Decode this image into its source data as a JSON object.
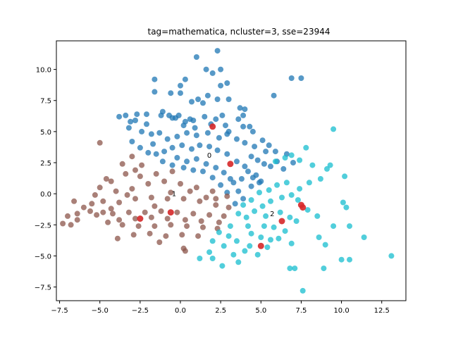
{
  "chart_data": {
    "type": "scatter",
    "title": "tag=mathematica, ncluster=3, sse=23944",
    "xlabel": "",
    "ylabel": "",
    "xlim": [
      -7.7,
      14.0
    ],
    "ylim": [
      -8.6,
      12.3
    ],
    "xticks": [
      -7.5,
      -5.0,
      -2.5,
      0.0,
      2.5,
      5.0,
      7.5,
      10.0,
      12.5
    ],
    "xtick_labels": [
      "−7.5",
      "−5.0",
      "−2.5",
      "0.0",
      "2.5",
      "5.0",
      "7.5",
      "10.0",
      "12.5"
    ],
    "yticks": [
      -7.5,
      -5.0,
      -2.5,
      0.0,
      2.5,
      5.0,
      7.5,
      10.0
    ],
    "ytick_labels": [
      "−7.5",
      "−5.0",
      "−2.5",
      "0.0",
      "2.5",
      "5.0",
      "7.5",
      "10.0"
    ],
    "grid": false,
    "colors": {
      "cluster_0": "#1f77b4",
      "cluster_1": "#8c564b",
      "cluster_2": "#17becf",
      "centroid": "#d62728"
    },
    "cluster_labels": [
      {
        "text": "0",
        "x": 1.8,
        "y": 2.9
      },
      {
        "text": "1",
        "x": -0.4,
        "y": -0.2
      },
      {
        "text": "2",
        "x": 5.7,
        "y": -1.8
      }
    ],
    "centroids": [
      {
        "x": 2.0,
        "y": 5.4
      },
      {
        "x": 3.1,
        "y": 2.4
      },
      {
        "x": -2.5,
        "y": -2.0
      },
      {
        "x": -0.6,
        "y": -1.5
      },
      {
        "x": 5.0,
        "y": -4.2
      },
      {
        "x": 6.3,
        "y": -2.2
      },
      {
        "x": 7.5,
        "y": -0.9
      },
      {
        "x": 7.6,
        "y": -1.1
      }
    ],
    "series": [
      {
        "color_key": "cluster_0",
        "points": [
          [
            -1.6,
            8.2
          ],
          [
            -1.2,
            6.3
          ],
          [
            -0.7,
            6.3
          ],
          [
            -0.5,
            6.1
          ],
          [
            -0.3,
            6.1
          ],
          [
            0.2,
            5.5
          ],
          [
            0.3,
            5.8
          ],
          [
            0.6,
            6.0
          ],
          [
            0.9,
            5.3
          ],
          [
            1.5,
            6.2
          ],
          [
            2.2,
            6.0
          ],
          [
            2.6,
            6.3
          ],
          [
            3.0,
            5.0
          ],
          [
            3.6,
            6.0
          ],
          [
            3.9,
            6.3
          ],
          [
            4.3,
            5.4
          ],
          [
            -3.2,
            5.3
          ],
          [
            -3.4,
            6.3
          ],
          [
            -2.8,
            5.9
          ],
          [
            -2.7,
            6.4
          ],
          [
            -2.4,
            5.0
          ],
          [
            -2.1,
            5.6
          ],
          [
            -1.8,
            4.8
          ],
          [
            -1.3,
            4.9
          ],
          [
            -3.0,
            4.2
          ],
          [
            -2.5,
            3.7
          ],
          [
            -1.7,
            4.0
          ],
          [
            -0.8,
            4.4
          ],
          [
            -0.2,
            4.6
          ],
          [
            0.4,
            4.9
          ],
          [
            1.0,
            4.7
          ],
          [
            1.7,
            4.9
          ],
          [
            2.4,
            4.5
          ],
          [
            2.9,
            4.8
          ],
          [
            3.5,
            4.4
          ],
          [
            4.0,
            4.1
          ],
          [
            4.6,
            3.8
          ],
          [
            5.1,
            4.3
          ],
          [
            5.5,
            3.9
          ],
          [
            5.9,
            3.4
          ],
          [
            4.4,
            3.0
          ],
          [
            4.8,
            2.7
          ],
          [
            5.2,
            2.4
          ],
          [
            5.6,
            2.2
          ],
          [
            4.2,
            1.8
          ],
          [
            4.7,
            1.5
          ],
          [
            3.8,
            1.2
          ],
          [
            3.3,
            0.9
          ],
          [
            4.0,
            2.2
          ],
          [
            3.5,
            2.6
          ],
          [
            2.9,
            3.2
          ],
          [
            2.3,
            3.5
          ],
          [
            1.8,
            3.8
          ],
          [
            1.2,
            3.9
          ],
          [
            0.7,
            3.6
          ],
          [
            0.1,
            3.9
          ],
          [
            -0.5,
            3.7
          ],
          [
            -1.0,
            3.4
          ],
          [
            -1.5,
            3.2
          ],
          [
            -2.0,
            3.3
          ],
          [
            -0.2,
            2.9
          ],
          [
            0.4,
            2.6
          ],
          [
            1.0,
            2.8
          ],
          [
            1.6,
            2.4
          ],
          [
            2.2,
            2.1
          ],
          [
            2.7,
            1.7
          ],
          [
            3.1,
            1.2
          ],
          [
            2.5,
            0.7
          ],
          [
            2.0,
            1.3
          ],
          [
            1.4,
            1.8
          ],
          [
            0.8,
            1.9
          ],
          [
            0.2,
            2.1
          ],
          [
            -0.5,
            2.3
          ],
          [
            -1.1,
            2.6
          ],
          [
            3.6,
            0.2
          ],
          [
            3.9,
            -0.4
          ],
          [
            3.4,
            -0.8
          ],
          [
            2.9,
            0.1
          ],
          [
            4.4,
            0.6
          ],
          [
            4.9,
            0.9
          ],
          [
            1.0,
            11.0
          ],
          [
            2.3,
            11.5
          ],
          [
            1.6,
            10.0
          ],
          [
            2.0,
            9.7
          ],
          [
            2.5,
            10.0
          ],
          [
            0.3,
            9.2
          ],
          [
            -1.6,
            9.2
          ],
          [
            0.0,
            8.7
          ],
          [
            2.5,
            8.7
          ],
          [
            2.9,
            8.9
          ],
          [
            -0.6,
            8.1
          ],
          [
            0.0,
            8.1
          ],
          [
            1.7,
            7.9
          ],
          [
            1.1,
            7.6
          ],
          [
            3.0,
            7.6
          ],
          [
            0.7,
            7.4
          ],
          [
            2.3,
            7.6
          ],
          [
            1.4,
            7.3
          ],
          [
            3.7,
            6.9
          ],
          [
            4.0,
            6.8
          ],
          [
            -3.8,
            6.2
          ],
          [
            -3.1,
            5.8
          ],
          [
            -2.1,
            6.4
          ],
          [
            -1.1,
            6.6
          ],
          [
            -0.1,
            6.3
          ],
          [
            0.8,
            5.9
          ],
          [
            1.9,
            5.6
          ],
          [
            2.8,
            5.5
          ],
          [
            3.9,
            5.4
          ],
          [
            4.5,
            5.0
          ],
          [
            5.8,
            7.9
          ],
          [
            6.9,
            9.3
          ],
          [
            7.5,
            9.3
          ],
          [
            7.0,
            2.5
          ],
          [
            6.6,
            3.2
          ],
          [
            5.3,
            3.4
          ],
          [
            6.0,
            2.6
          ],
          [
            6.4,
            2.0
          ],
          [
            5.0,
            1.0
          ],
          [
            4.5,
            1.3
          ]
        ]
      },
      {
        "color_key": "cluster_1",
        "points": [
          [
            -5.0,
            4.1
          ],
          [
            -3.0,
            3.0
          ],
          [
            -2.4,
            2.3
          ],
          [
            -3.4,
            1.6
          ],
          [
            -4.3,
            1.0
          ],
          [
            -5.0,
            0.5
          ],
          [
            -4.0,
            0.2
          ],
          [
            -3.0,
            0.4
          ],
          [
            -2.0,
            0.8
          ],
          [
            -1.0,
            1.0
          ],
          [
            0.0,
            0.8
          ],
          [
            1.0,
            0.5
          ],
          [
            2.0,
            0.2
          ],
          [
            2.9,
            -0.2
          ],
          [
            -5.3,
            -0.1
          ],
          [
            -4.8,
            -0.6
          ],
          [
            -3.8,
            -0.7
          ],
          [
            -2.8,
            -0.4
          ],
          [
            -1.8,
            -0.3
          ],
          [
            -0.8,
            -0.4
          ],
          [
            0.2,
            -0.4
          ],
          [
            1.2,
            -0.6
          ],
          [
            2.2,
            -0.9
          ],
          [
            3.0,
            -1.1
          ],
          [
            -6.6,
            -0.6
          ],
          [
            -6.0,
            -1.1
          ],
          [
            -5.6,
            -1.4
          ],
          [
            -6.4,
            -1.6
          ],
          [
            -7.0,
            -1.8
          ],
          [
            -7.3,
            -2.4
          ],
          [
            -6.8,
            -2.5
          ],
          [
            -6.4,
            -2.1
          ],
          [
            -5.2,
            -1.7
          ],
          [
            -4.2,
            -1.6
          ],
          [
            -3.2,
            -1.5
          ],
          [
            -2.2,
            -1.5
          ],
          [
            -1.2,
            -1.4
          ],
          [
            -0.2,
            -1.5
          ],
          [
            0.8,
            -1.6
          ],
          [
            1.8,
            -1.7
          ],
          [
            2.7,
            -1.8
          ],
          [
            -4.5,
            -2.3
          ],
          [
            -3.6,
            -2.5
          ],
          [
            -2.6,
            -2.6
          ],
          [
            -1.6,
            -2.6
          ],
          [
            -0.6,
            -2.5
          ],
          [
            0.4,
            -2.6
          ],
          [
            1.4,
            -2.7
          ],
          [
            2.3,
            -2.8
          ],
          [
            -3.9,
            -3.6
          ],
          [
            -2.9,
            -3.3
          ],
          [
            -1.9,
            -3.2
          ],
          [
            -0.9,
            -3.4
          ],
          [
            0.1,
            -3.3
          ],
          [
            1.1,
            -3.4
          ],
          [
            -1.3,
            -3.9
          ],
          [
            0.2,
            -4.4
          ],
          [
            0.3,
            -4.6
          ],
          [
            -1.6,
            -1.0
          ],
          [
            -0.6,
            0.1
          ],
          [
            0.6,
            0.2
          ],
          [
            1.6,
            -0.3
          ],
          [
            -2.5,
            1.4
          ],
          [
            -1.5,
            1.6
          ],
          [
            -0.5,
            1.8
          ],
          [
            -4.6,
            1.2
          ],
          [
            -3.6,
            2.4
          ],
          [
            -2.8,
            1.9
          ],
          [
            -3.3,
            -0.1
          ],
          [
            -4.3,
            -1.2
          ],
          [
            -5.5,
            -0.8
          ],
          [
            -4.8,
            -1.5
          ],
          [
            -3.8,
            -2.1
          ],
          [
            -2.8,
            -2.0
          ],
          [
            -1.8,
            -1.9
          ],
          [
            -0.8,
            -2.0
          ],
          [
            0.3,
            -2.1
          ],
          [
            1.3,
            -2.2
          ],
          [
            2.4,
            -2.3
          ],
          [
            2.2,
            -0.4
          ]
        ]
      },
      {
        "color_key": "cluster_2",
        "points": [
          [
            9.5,
            5.2
          ],
          [
            7.8,
            3.7
          ],
          [
            6.9,
            3.1
          ],
          [
            6.5,
            2.9
          ],
          [
            5.9,
            2.6
          ],
          [
            7.4,
            2.7
          ],
          [
            8.2,
            2.3
          ],
          [
            9.1,
            2.0
          ],
          [
            9.3,
            2.3
          ],
          [
            10.2,
            1.4
          ],
          [
            8.7,
            1.2
          ],
          [
            8.0,
            0.9
          ],
          [
            7.4,
            0.4
          ],
          [
            6.6,
            0.9
          ],
          [
            6.0,
            0.7
          ],
          [
            5.5,
            0.3
          ],
          [
            4.9,
            0.1
          ],
          [
            4.4,
            -0.5
          ],
          [
            3.9,
            -0.9
          ],
          [
            3.6,
            -1.6
          ],
          [
            4.1,
            -1.9
          ],
          [
            4.6,
            -1.4
          ],
          [
            5.1,
            -1.0
          ],
          [
            5.6,
            -0.6
          ],
          [
            6.3,
            -0.3
          ],
          [
            6.9,
            -0.1
          ],
          [
            7.3,
            -0.5
          ],
          [
            7.9,
            -1.3
          ],
          [
            8.5,
            -1.8
          ],
          [
            9.5,
            -2.6
          ],
          [
            10.1,
            -0.7
          ],
          [
            10.3,
            -1.1
          ],
          [
            10.5,
            -2.6
          ],
          [
            11.4,
            -3.5
          ],
          [
            13.1,
            -5.0
          ],
          [
            9.0,
            -4.1
          ],
          [
            8.6,
            -3.5
          ],
          [
            8.9,
            -6.0
          ],
          [
            7.6,
            -7.8
          ],
          [
            7.1,
            -6.0
          ],
          [
            6.8,
            -6.0
          ],
          [
            10.0,
            -5.3
          ],
          [
            10.5,
            -5.3
          ],
          [
            6.9,
            -4.0
          ],
          [
            6.1,
            -3.6
          ],
          [
            5.6,
            -3.7
          ],
          [
            4.8,
            -4.9
          ],
          [
            4.0,
            -4.6
          ],
          [
            3.6,
            -5.5
          ],
          [
            2.6,
            -5.8
          ],
          [
            2.0,
            -5.2
          ],
          [
            1.8,
            -4.7
          ],
          [
            1.2,
            -5.2
          ],
          [
            2.7,
            -4.2
          ],
          [
            3.5,
            -3.8
          ],
          [
            4.4,
            -3.2
          ],
          [
            5.2,
            -2.6
          ],
          [
            5.8,
            -2.7
          ],
          [
            6.5,
            -3.0
          ],
          [
            7.2,
            -2.2
          ],
          [
            2.4,
            -3.1
          ],
          [
            3.1,
            -2.6
          ],
          [
            2.0,
            -3.8
          ],
          [
            3.0,
            -3.4
          ],
          [
            4.2,
            -2.6
          ],
          [
            5.0,
            -3.5
          ],
          [
            5.4,
            -4.3
          ],
          [
            3.3,
            -4.9
          ],
          [
            4.3,
            -4.2
          ],
          [
            6.2,
            -1.5
          ],
          [
            6.8,
            -1.9
          ],
          [
            5.3,
            -1.8
          ]
        ]
      }
    ]
  }
}
